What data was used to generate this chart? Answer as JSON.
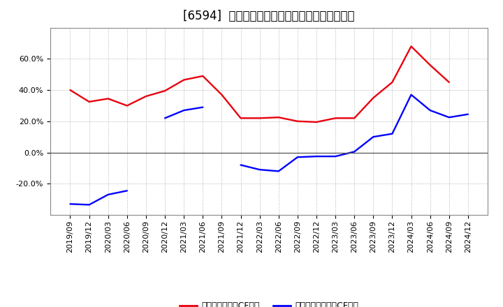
{
  "title": "[6594]  有利子負債キャッシュフロー比率の推移",
  "x_labels": [
    "2019/09",
    "2019/12",
    "2020/03",
    "2020/06",
    "2020/09",
    "2020/12",
    "2021/03",
    "2021/06",
    "2021/09",
    "2021/12",
    "2022/03",
    "2022/06",
    "2022/09",
    "2022/12",
    "2023/03",
    "2023/06",
    "2023/09",
    "2023/12",
    "2024/03",
    "2024/06",
    "2024/09",
    "2024/12"
  ],
  "red_values": [
    40.0,
    32.5,
    34.5,
    30.0,
    36.0,
    39.5,
    46.5,
    49.0,
    37.0,
    22.0,
    22.0,
    22.5,
    20.0,
    19.5,
    22.0,
    22.0,
    35.0,
    45.0,
    68.0,
    56.0,
    45.0,
    null
  ],
  "blue_values": [
    -33.0,
    -33.5,
    -27.0,
    -24.5,
    null,
    22.0,
    27.0,
    29.0,
    null,
    -8.0,
    -11.0,
    -12.0,
    -3.0,
    -2.5,
    -2.5,
    0.5,
    10.0,
    12.0,
    37.0,
    27.0,
    22.5,
    24.5
  ],
  "red_color": "#e8000d",
  "blue_color": "#0000ff",
  "bg_color": "#ffffff",
  "plot_bg_color": "#ffffff",
  "grid_color": "#b0b0b0",
  "legend_red": "有利子負債営業CF比率",
  "legend_blue": "有利子負債フリーCF比率",
  "ylim": [
    -40,
    80
  ],
  "yticks": [
    -20.0,
    0.0,
    20.0,
    40.0,
    60.0
  ],
  "title_fontsize": 12,
  "tick_fontsize": 8,
  "legend_fontsize": 9
}
